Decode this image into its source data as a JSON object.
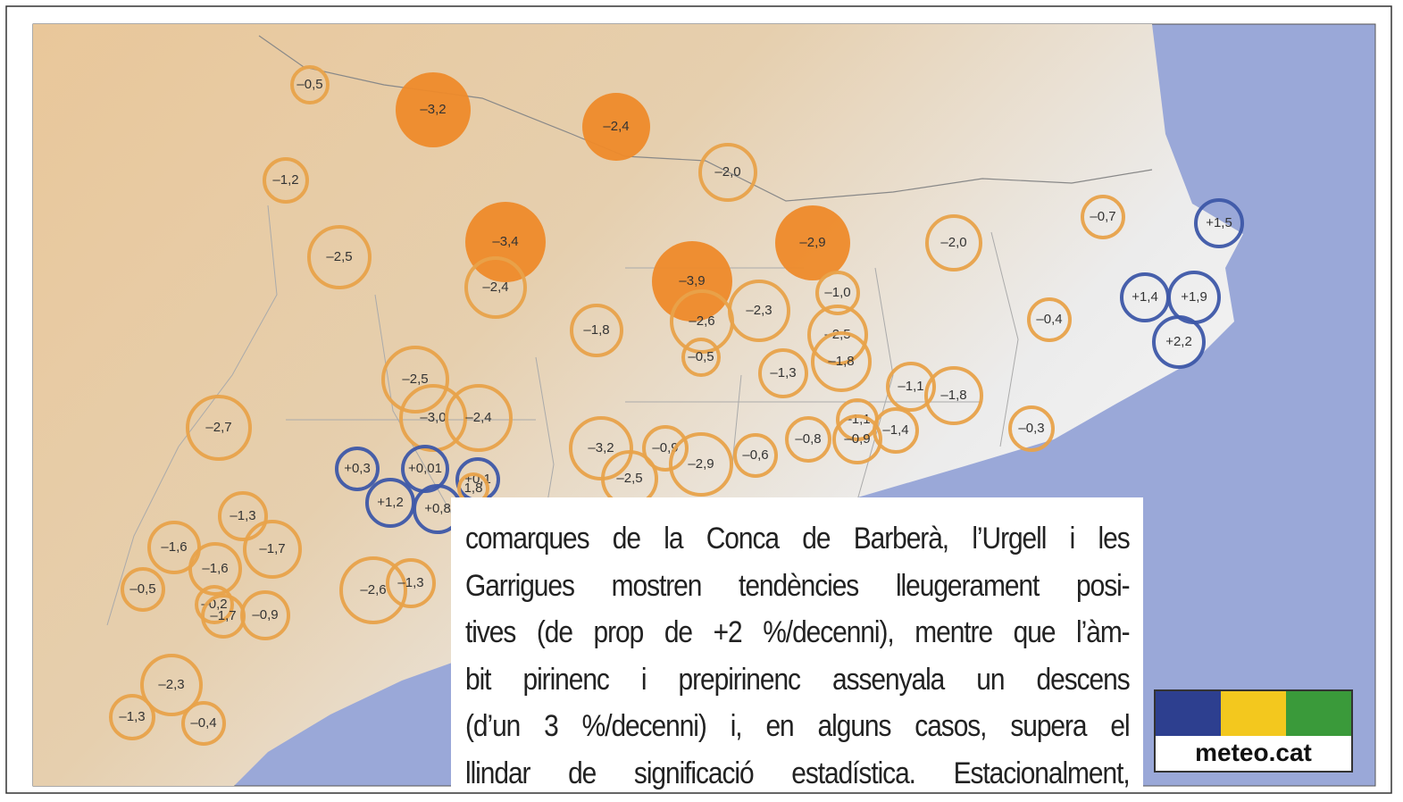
{
  "markers": [
    {
      "label": "–0,5",
      "color": "#e8a24a",
      "filled": false
    },
    {
      "label": "–3,2",
      "color": "#ee8a2a",
      "filled": true
    },
    {
      "label": "–2,4",
      "color": "#ee8a2a",
      "filled": true
    },
    {
      "label": "–1,2",
      "color": "#e8a24a",
      "filled": false
    },
    {
      "label": "–2,0",
      "color": "#e8a24a",
      "filled": false
    },
    {
      "label": "–3,4",
      "color": "#ee8a2a",
      "filled": true
    },
    {
      "label": "–2,9",
      "color": "#ee8a2a",
      "filled": true
    },
    {
      "label": "–2,5",
      "color": "#e8a24a",
      "filled": false
    },
    {
      "label": "–0,7",
      "color": "#e8a24a",
      "filled": false
    },
    {
      "label": "+1,5",
      "color": "#3d57a8",
      "filled": false
    },
    {
      "label": "–2,0",
      "color": "#e8a24a",
      "filled": false
    },
    {
      "label": "–2,4",
      "color": "#e8a24a",
      "filled": false
    },
    {
      "label": "–3,9",
      "color": "#ee8a2a",
      "filled": true
    },
    {
      "label": "–1,0",
      "color": "#e8a24a",
      "filled": false
    },
    {
      "label": "+1,4",
      "color": "#3d57a8",
      "filled": false
    },
    {
      "label": "+1,9",
      "color": "#3d57a8",
      "filled": false
    },
    {
      "label": "–0,4",
      "color": "#e8a24a",
      "filled": false
    },
    {
      "label": "–1,8",
      "color": "#e8a24a",
      "filled": false
    },
    {
      "label": "–2,6",
      "color": "#e8a24a",
      "filled": false
    },
    {
      "label": "–2,3",
      "color": "#e8a24a",
      "filled": false
    },
    {
      "label": "–2,5",
      "color": "#e8a24a",
      "filled": false
    },
    {
      "label": "+2,2",
      "color": "#3d57a8",
      "filled": false
    },
    {
      "label": "–0,5",
      "color": "#e8a24a",
      "filled": false
    },
    {
      "label": "–1,8",
      "color": "#e8a24a",
      "filled": false
    },
    {
      "label": "–1,3",
      "color": "#e8a24a",
      "filled": false
    },
    {
      "label": "–2,5",
      "color": "#e8a24a",
      "filled": false
    },
    {
      "label": "–1,1",
      "color": "#e8a24a",
      "filled": false
    },
    {
      "label": "–1,8",
      "color": "#e8a24a",
      "filled": false
    },
    {
      "label": "–2,7",
      "color": "#e8a24a",
      "filled": false
    },
    {
      "label": "–3,0",
      "color": "#e8a24a",
      "filled": false
    },
    {
      "label": "–2,4",
      "color": "#e8a24a",
      "filled": false
    },
    {
      "label": "–1,1",
      "color": "#e8a24a",
      "filled": false
    },
    {
      "label": "–1,4",
      "color": "#e8a24a",
      "filled": false
    },
    {
      "label": "–0,3",
      "color": "#e8a24a",
      "filled": false
    },
    {
      "label": "–0,8",
      "color": "#e8a24a",
      "filled": false
    },
    {
      "label": "–0,9",
      "color": "#e8a24a",
      "filled": false
    },
    {
      "label": "–3,2",
      "color": "#e8a24a",
      "filled": false
    },
    {
      "label": "–0,9",
      "color": "#e8a24a",
      "filled": false
    },
    {
      "label": "–2,9",
      "color": "#e8a24a",
      "filled": false
    },
    {
      "label": "–0,6",
      "color": "#e8a24a",
      "filled": false
    },
    {
      "label": "–2,5",
      "color": "#e8a24a",
      "filled": false
    },
    {
      "label": "+0,3",
      "color": "#3d57a8",
      "filled": false
    },
    {
      "label": "+0,01",
      "color": "#3d57a8",
      "filled": false
    },
    {
      "label": "+0,1",
      "color": "#3d57a8",
      "filled": false
    },
    {
      "label": "1,8",
      "color": "#e8a24a",
      "filled": false
    },
    {
      "label": "+1,2",
      "color": "#3d57a8",
      "filled": false
    },
    {
      "label": "+0,8",
      "color": "#3d57a8",
      "filled": false
    },
    {
      "label": "–1,3",
      "color": "#e8a24a",
      "filled": false
    },
    {
      "label": "–1,6",
      "color": "#e8a24a",
      "filled": false
    },
    {
      "label": "–1,7",
      "color": "#e8a24a",
      "filled": false
    },
    {
      "label": "–1,6",
      "color": "#e8a24a",
      "filled": false
    },
    {
      "label": "–0,5",
      "color": "#e8a24a",
      "filled": false
    },
    {
      "label": "–2,6",
      "color": "#e8a24a",
      "filled": false
    },
    {
      "label": "–1,3",
      "color": "#e8a24a",
      "filled": false
    },
    {
      "label": "–0,2",
      "color": "#e8a24a",
      "filled": false
    },
    {
      "label": "–1,7",
      "color": "#e8a24a",
      "filled": false
    },
    {
      "label": "–0,9",
      "color": "#e8a24a",
      "filled": false
    },
    {
      "label": "–2,3",
      "color": "#e8a24a",
      "filled": false
    },
    {
      "label": "–1,3",
      "color": "#e8a24a",
      "filled": false
    },
    {
      "label": "–0,4",
      "color": "#e8a24a",
      "filled": false
    }
  ],
  "text_lines": [
    "comarques de la Conca de Barberà, l’Urgell i les",
    "Garrigues mostren tendències lleugerament posi-",
    "tives (de prop de +2 %/decenni), mentre que l’àm-",
    "bit pirinenc i prepirinenc assenyala un descens",
    "(d’un 3 %/decenni) i, en alguns casos, supera el",
    "llindar de significació estadística. Estacionalment,"
  ],
  "logo": {
    "text": "meteo.cat"
  }
}
